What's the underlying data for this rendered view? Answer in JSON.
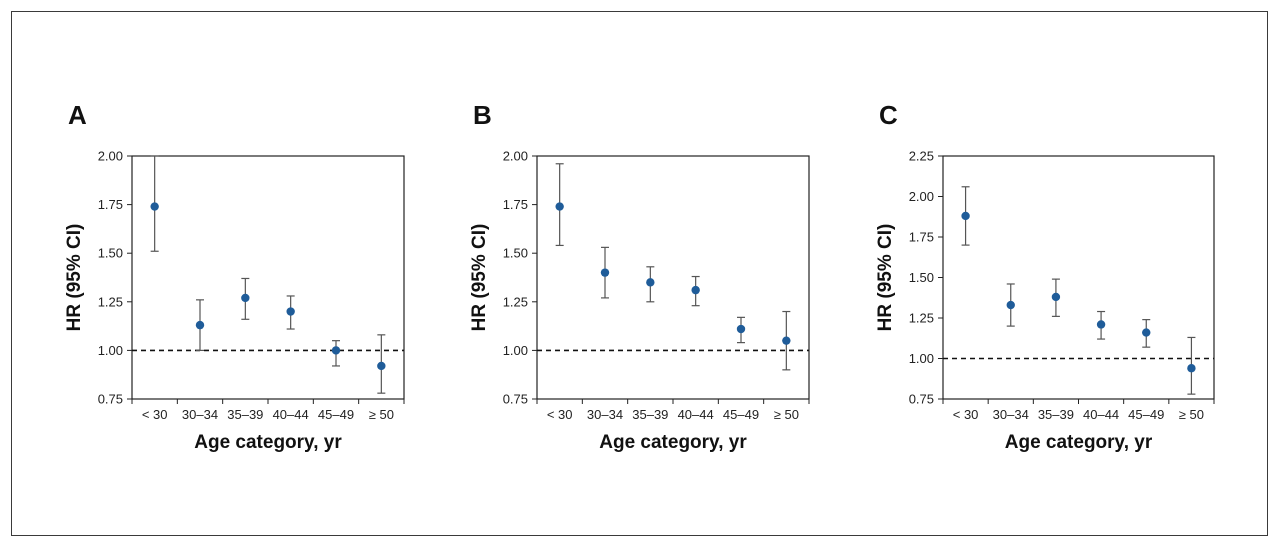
{
  "figure": {
    "chart_data": [
      {
        "type": "scatter",
        "panel": "A",
        "categories": [
          "< 30",
          "30–34",
          "35–39",
          "40–44",
          "45–49",
          "≥ 50"
        ],
        "values": [
          1.74,
          1.13,
          1.27,
          1.2,
          1.0,
          0.92
        ],
        "ci_low": [
          1.51,
          1.0,
          1.16,
          1.11,
          0.92,
          0.78
        ],
        "ci_high": [
          2.0,
          1.26,
          1.37,
          1.28,
          1.05,
          1.08
        ],
        "xlabel": "Age category, yr",
        "ylabel": "HR  (95% CI)",
        "ylim": [
          0.75,
          2.0
        ],
        "yticks": [
          "0.75",
          "1.00",
          "1.25",
          "1.50",
          "1.75",
          "2.00"
        ],
        "reference_line": 1.0,
        "grid": false,
        "marker_color": "#1f5c99",
        "errorbar_color": "#555555"
      },
      {
        "type": "scatter",
        "panel": "B",
        "categories": [
          "< 30",
          "30–34",
          "35–39",
          "40–44",
          "45–49",
          "≥ 50"
        ],
        "values": [
          1.74,
          1.4,
          1.35,
          1.31,
          1.11,
          1.05
        ],
        "ci_low": [
          1.54,
          1.27,
          1.25,
          1.23,
          1.04,
          0.9
        ],
        "ci_high": [
          1.96,
          1.53,
          1.43,
          1.38,
          1.17,
          1.2
        ],
        "xlabel": "Age category, yr",
        "ylabel": "HR  (95% CI)",
        "ylim": [
          0.75,
          2.0
        ],
        "yticks": [
          "0.75",
          "1.00",
          "1.25",
          "1.50",
          "1.75",
          "2.00"
        ],
        "reference_line": 1.0,
        "grid": false,
        "marker_color": "#1f5c99",
        "errorbar_color": "#555555"
      },
      {
        "type": "scatter",
        "panel": "C",
        "categories": [
          "< 30",
          "30–34",
          "35–39",
          "40–44",
          "45–49",
          "≥ 50"
        ],
        "values": [
          1.88,
          1.33,
          1.38,
          1.21,
          1.16,
          0.94
        ],
        "ci_low": [
          1.7,
          1.2,
          1.26,
          1.12,
          1.07,
          0.78
        ],
        "ci_high": [
          2.06,
          1.46,
          1.49,
          1.29,
          1.24,
          1.13
        ],
        "xlabel": "Age category, yr",
        "ylabel": "HR  (95% CI)",
        "ylim": [
          0.75,
          2.25
        ],
        "yticks": [
          "0.75",
          "1.00",
          "1.25",
          "1.50",
          "1.75",
          "2.00",
          "2.25"
        ],
        "reference_line": 1.0,
        "grid": false,
        "marker_color": "#1f5c99",
        "errorbar_color": "#555555"
      }
    ]
  }
}
